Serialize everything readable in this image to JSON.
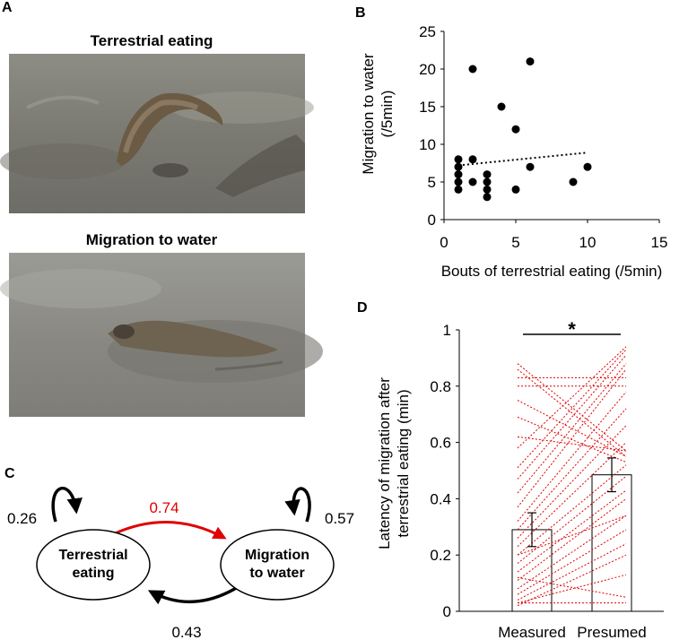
{
  "panels": {
    "a": {
      "letter": "A",
      "photo1_title": "Terrestrial eating",
      "photo2_title": "Migration to water"
    },
    "b": {
      "letter": "B"
    },
    "c": {
      "letter": "C",
      "node1": "Terrestrial\neating",
      "node2": "Migration\nto water",
      "self1": "0.26",
      "self2": "0.57",
      "forward": "0.74",
      "backward": "0.43",
      "forward_color": "#e00000"
    },
    "d": {
      "letter": "D",
      "significance": "*"
    }
  },
  "chart_data": [
    {
      "id": "B",
      "type": "scatter",
      "xlabel": "Bouts of terrestrial eating (/5min)",
      "ylabel_lines": [
        "Migration to water",
        "(/5min)"
      ],
      "xlim": [
        0,
        15
      ],
      "ylim": [
        0,
        25
      ],
      "xticks": [
        0,
        5,
        10,
        15
      ],
      "yticks": [
        0,
        5,
        10,
        15,
        20,
        25
      ],
      "points": [
        [
          1,
          4
        ],
        [
          1,
          5
        ],
        [
          1,
          6
        ],
        [
          1,
          7
        ],
        [
          1,
          8
        ],
        [
          2,
          5
        ],
        [
          2,
          8
        ],
        [
          2,
          20
        ],
        [
          3,
          3
        ],
        [
          3,
          4
        ],
        [
          3,
          5
        ],
        [
          3,
          6
        ],
        [
          4,
          15
        ],
        [
          5,
          4
        ],
        [
          5,
          12
        ],
        [
          6,
          7
        ],
        [
          6,
          21
        ],
        [
          9,
          5
        ],
        [
          10,
          7
        ]
      ],
      "trendline": {
        "style": "dotted",
        "from": [
          1,
          7.2
        ],
        "to": [
          10,
          8.9
        ]
      }
    },
    {
      "id": "D",
      "type": "bar",
      "ylabel_lines": [
        "Latency of migration after",
        "terrestrial eating (min)"
      ],
      "ylim": [
        0,
        1
      ],
      "yticks": [
        0,
        0.2,
        0.4,
        0.6,
        0.8,
        1
      ],
      "categories": [
        "Measured",
        "Presumed"
      ],
      "values": [
        0.29,
        0.485
      ],
      "errors": [
        0.06,
        0.06
      ],
      "bar_fill": "#ffffff",
      "line_color": "#e00000",
      "pairs": [
        [
          0.88,
          0.57
        ],
        [
          0.86,
          0.55
        ],
        [
          0.83,
          0.83
        ],
        [
          0.8,
          0.8
        ],
        [
          0.75,
          0.55
        ],
        [
          0.69,
          0.53
        ],
        [
          0.62,
          0.57
        ],
        [
          0.58,
          0.94
        ],
        [
          0.51,
          0.93
        ],
        [
          0.47,
          0.91
        ],
        [
          0.42,
          0.88
        ],
        [
          0.37,
          0.86
        ],
        [
          0.32,
          0.78
        ],
        [
          0.29,
          0.72
        ],
        [
          0.26,
          0.66
        ],
        [
          0.23,
          0.6
        ],
        [
          0.2,
          0.52
        ],
        [
          0.17,
          0.48
        ],
        [
          0.14,
          0.43
        ],
        [
          0.11,
          0.4
        ],
        [
          0.08,
          0.34
        ],
        [
          0.06,
          0.29
        ],
        [
          0.04,
          0.24
        ],
        [
          0.03,
          0.13
        ],
        [
          0.03,
          0.03
        ],
        [
          0.02,
          0.2
        ],
        [
          0.12,
          0.05
        ],
        [
          0.2,
          0.34
        ]
      ]
    }
  ]
}
